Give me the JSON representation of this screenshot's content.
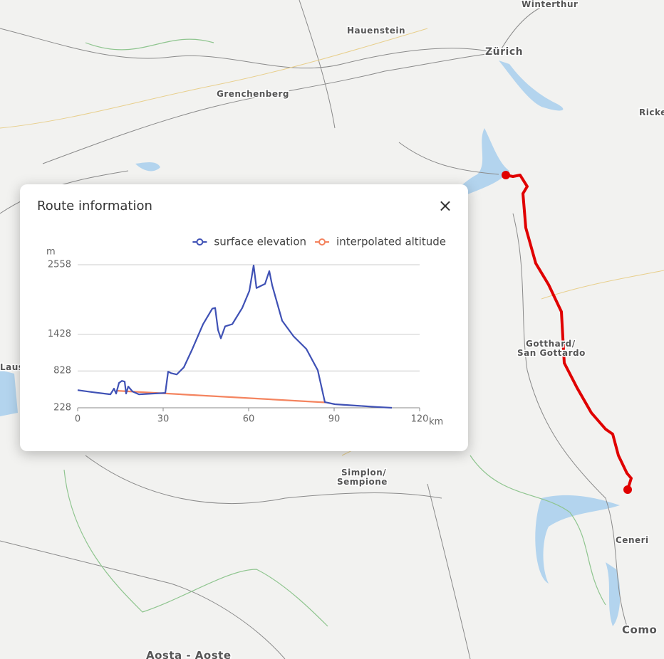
{
  "map": {
    "labels": {
      "winterthur": "Winterthur",
      "hauenstein": "Hauenstein",
      "zurich": "Zürich",
      "grenchenberg": "Grenchenberg",
      "rickenpass": "Ricke",
      "gotthard": [
        "Gotthard/",
        "San Gottardo"
      ],
      "simplon": [
        "Simplon/",
        "Sempione"
      ],
      "ceneri": "Ceneri",
      "como": "Como",
      "aosta": "Aosta - Aoste",
      "lausanne": "Laus"
    }
  },
  "panel": {
    "title": "Route information",
    "close": "×"
  },
  "chart_data": {
    "type": "line",
    "y_unit": "m",
    "x_unit": "km",
    "xlim": [
      0,
      120
    ],
    "xticks": [
      0,
      30,
      60,
      90,
      120
    ],
    "ylim": [
      228,
      2558
    ],
    "yticks": [
      228,
      828,
      1428,
      2558
    ],
    "grid": true,
    "series": [
      {
        "name": "surface elevation",
        "color": "#3f51b5",
        "x": [
          0,
          5.25,
          11.5,
          12.75,
          13.5,
          14.5,
          15.5,
          16.5,
          17,
          17.75,
          19.25,
          21.5,
          26.5,
          30.75,
          31.75,
          32.75,
          34.75,
          37.25,
          40.25,
          44,
          47.25,
          48.25,
          49.25,
          50.25,
          51.75,
          54.25,
          57.75,
          60.25,
          61.75,
          62.75,
          65.75,
          67.25,
          68.25,
          71.75,
          75.75,
          80.25,
          84.25,
          86.75,
          90.25,
          97.75,
          105.25,
          110.25
        ],
        "values": [
          516,
          482,
          447,
          540,
          459,
          632,
          666,
          655,
          459,
          574,
          493,
          447,
          459,
          470,
          817,
          793,
          770,
          886,
          1186,
          1590,
          1843,
          1855,
          1497,
          1359,
          1555,
          1590,
          1855,
          2132,
          2547,
          2178,
          2247,
          2455,
          2224,
          1647,
          1393,
          1186,
          840,
          320,
          286,
          263,
          240,
          228
        ]
      },
      {
        "name": "interpolated altitude",
        "color": "#f4845f",
        "x": [
          14,
          87
        ],
        "values": [
          505,
          315
        ]
      }
    ]
  }
}
